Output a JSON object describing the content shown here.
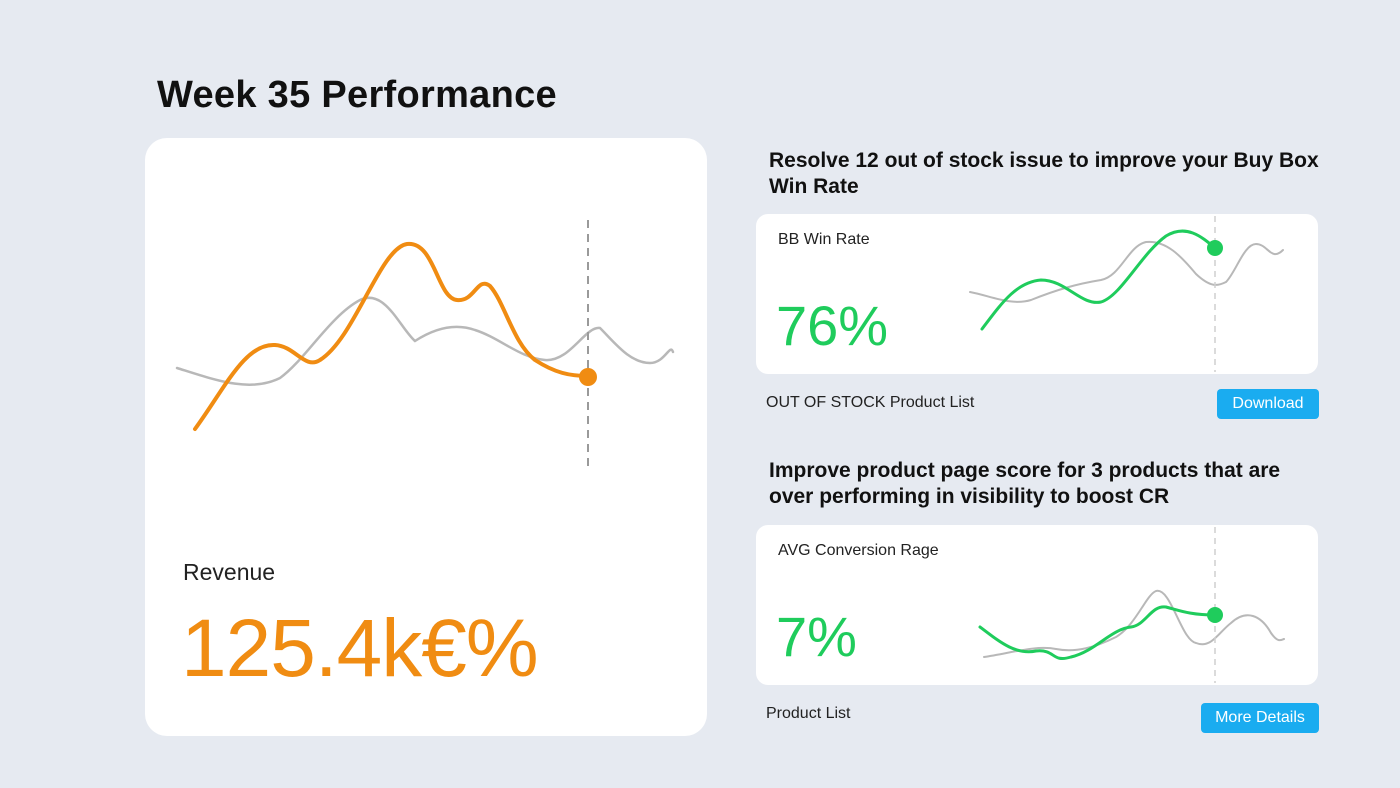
{
  "page": {
    "title": "Week 35 Performance"
  },
  "revenue": {
    "label": "Revenue",
    "value": "125.4k€%",
    "accent_color": "#f08c12",
    "comparison_color": "#b8b8b8"
  },
  "insights": [
    {
      "heading": "Resolve 12 out of stock issue to improve your Buy Box Win Rate",
      "metric_label": "BB Win Rate",
      "metric_value": "76%",
      "list_label": "OUT OF STOCK Product List",
      "button_label": "Download"
    },
    {
      "heading": "Improve product page score for 3 products that are over performing in visibility to boost CR",
      "metric_label": "AVG Conversion Rage",
      "metric_value": "7%",
      "list_label": "Product List",
      "button_label": "More Details"
    }
  ],
  "colors": {
    "positive": "#1fcc5c",
    "button": "#1aacf0",
    "background": "#e6eaf1"
  },
  "icons": {
    "current_point": "current-point-marker"
  }
}
